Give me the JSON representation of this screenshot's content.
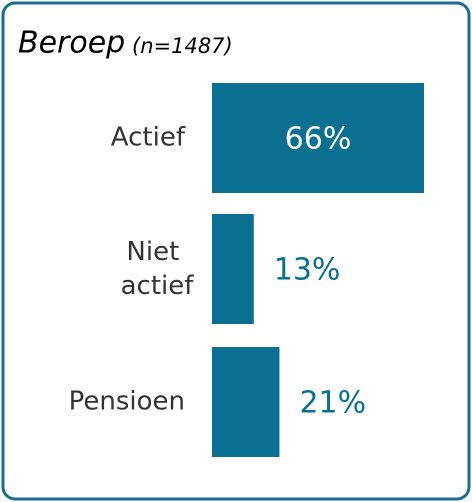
{
  "chart_data": {
    "type": "bar",
    "orientation": "horizontal",
    "title": "Beroep",
    "subtitle": "(n=1487)",
    "categories": [
      "Actief",
      "Niet actief",
      "Pensioen"
    ],
    "values": [
      66,
      13,
      21
    ],
    "value_labels": [
      "66%",
      "13%",
      "21%"
    ],
    "color": "#0b6f92"
  }
}
